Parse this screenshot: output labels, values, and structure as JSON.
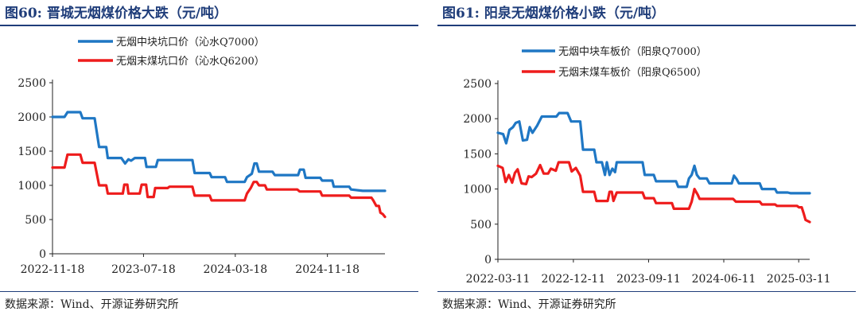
{
  "panels": [
    {
      "figure_title": "图60:  晋城无烟煤价格大跌（元/吨）",
      "source": "数据来源：Wind、开源证券研究所"
    },
    {
      "figure_title": "图61:  阳泉无烟煤价格小跌（元/吨）",
      "source": "数据来源：Wind、开源证券研究所"
    }
  ],
  "colors": {
    "blue": "#1f77c4",
    "red": "#ee1c1c",
    "title": "#1f3d7a"
  },
  "chart_data": [
    {
      "type": "line",
      "title": "",
      "xlabel": "",
      "ylabel": "",
      "ylim": [
        0,
        2500
      ],
      "yticks": [
        0,
        500,
        1000,
        1500,
        2000,
        2500
      ],
      "x_tick_labels": [
        "2022-11-18",
        "2023-07-18",
        "2024-03-18",
        "2024-11-18"
      ],
      "x_tick_dates": [
        "2022-11-18",
        "2023-07-18",
        "2024-03-18",
        "2024-11-18"
      ],
      "x_range": [
        "2022-11-18",
        "2025-04-20"
      ],
      "legend_position": "top-left",
      "grid": false,
      "series": [
        {
          "name": "无烟中块坑口价（沁水Q7000）",
          "color": "#1f77c4",
          "points": [
            [
              "2022-11-18",
              2000
            ],
            [
              "2022-12-20",
              2000
            ],
            [
              "2022-12-28",
              2070
            ],
            [
              "2023-01-31",
              2070
            ],
            [
              "2023-02-06",
              1980
            ],
            [
              "2023-03-10",
              1980
            ],
            [
              "2023-03-22",
              1560
            ],
            [
              "2023-04-10",
              1560
            ],
            [
              "2023-04-14",
              1400
            ],
            [
              "2023-05-20",
              1400
            ],
            [
              "2023-05-30",
              1320
            ],
            [
              "2023-06-08",
              1380
            ],
            [
              "2023-06-15",
              1360
            ],
            [
              "2023-06-25",
              1400
            ],
            [
              "2023-07-22",
              1400
            ],
            [
              "2023-07-26",
              1270
            ],
            [
              "2023-08-20",
              1270
            ],
            [
              "2023-08-25",
              1370
            ],
            [
              "2023-11-25",
              1370
            ],
            [
              "2023-12-01",
              1180
            ],
            [
              "2024-01-10",
              1180
            ],
            [
              "2024-01-15",
              1120
            ],
            [
              "2024-02-20",
              1120
            ],
            [
              "2024-02-25",
              1050
            ],
            [
              "2024-04-12",
              1050
            ],
            [
              "2024-04-18",
              1120
            ],
            [
              "2024-05-01",
              1170
            ],
            [
              "2024-05-08",
              1320
            ],
            [
              "2024-05-14",
              1320
            ],
            [
              "2024-05-20",
              1200
            ],
            [
              "2024-06-25",
              1200
            ],
            [
              "2024-07-01",
              1150
            ],
            [
              "2024-09-01",
              1150
            ],
            [
              "2024-09-06",
              1230
            ],
            [
              "2024-09-16",
              1230
            ],
            [
              "2024-09-21",
              1110
            ],
            [
              "2024-10-30",
              1110
            ],
            [
              "2024-11-04",
              1070
            ],
            [
              "2024-12-01",
              1070
            ],
            [
              "2024-12-05",
              980
            ],
            [
              "2025-01-15",
              980
            ],
            [
              "2025-01-20",
              940
            ],
            [
              "2025-02-20",
              920
            ],
            [
              "2025-04-20",
              920
            ]
          ]
        },
        {
          "name": "无烟末煤坑口价（沁水Q6200）",
          "color": "#ee1c1c",
          "points": [
            [
              "2022-11-18",
              1260
            ],
            [
              "2022-12-20",
              1260
            ],
            [
              "2022-12-28",
              1450
            ],
            [
              "2023-01-31",
              1450
            ],
            [
              "2023-02-06",
              1330
            ],
            [
              "2023-03-10",
              1330
            ],
            [
              "2023-03-22",
              1000
            ],
            [
              "2023-04-10",
              1000
            ],
            [
              "2023-04-14",
              880
            ],
            [
              "2023-05-24",
              880
            ],
            [
              "2023-05-28",
              1010
            ],
            [
              "2023-06-05",
              1010
            ],
            [
              "2023-06-08",
              880
            ],
            [
              "2023-07-08",
              880
            ],
            [
              "2023-07-13",
              1010
            ],
            [
              "2023-07-25",
              1010
            ],
            [
              "2023-07-29",
              830
            ],
            [
              "2023-08-14",
              830
            ],
            [
              "2023-08-18",
              960
            ],
            [
              "2023-09-20",
              960
            ],
            [
              "2023-09-25",
              980
            ],
            [
              "2023-11-25",
              980
            ],
            [
              "2023-12-01",
              850
            ],
            [
              "2024-01-10",
              850
            ],
            [
              "2024-01-15",
              780
            ],
            [
              "2024-04-12",
              780
            ],
            [
              "2024-04-18",
              880
            ],
            [
              "2024-04-28",
              960
            ],
            [
              "2024-05-06",
              1050
            ],
            [
              "2024-05-14",
              1050
            ],
            [
              "2024-05-20",
              1000
            ],
            [
              "2024-06-05",
              1000
            ],
            [
              "2024-06-10",
              940
            ],
            [
              "2024-08-30",
              940
            ],
            [
              "2024-09-05",
              910
            ],
            [
              "2024-10-30",
              910
            ],
            [
              "2024-11-04",
              850
            ],
            [
              "2025-01-15",
              850
            ],
            [
              "2025-01-20",
              820
            ],
            [
              "2025-03-15",
              820
            ],
            [
              "2025-03-20",
              780
            ],
            [
              "2025-03-28",
              700
            ],
            [
              "2025-04-04",
              700
            ],
            [
              "2025-04-08",
              600
            ],
            [
              "2025-04-14",
              580
            ],
            [
              "2025-04-20",
              540
            ]
          ]
        }
      ]
    },
    {
      "type": "line",
      "title": "",
      "xlabel": "",
      "ylabel": "",
      "ylim": [
        0,
        2500
      ],
      "yticks": [
        0,
        500,
        1000,
        1500,
        2000,
        2500
      ],
      "x_tick_labels": [
        "2022-03-11",
        "2022-12-11",
        "2023-09-11",
        "2024-06-11",
        "2025-03-11"
      ],
      "x_tick_dates": [
        "2022-03-11",
        "2022-12-11",
        "2023-09-11",
        "2024-06-11",
        "2025-03-11"
      ],
      "x_range": [
        "2022-03-11",
        "2025-04-20"
      ],
      "legend_position": "top-left",
      "grid": false,
      "series": [
        {
          "name": "无烟中块车板价（阳泉Q7000）",
          "color": "#1f77c4",
          "points": [
            [
              "2022-03-11",
              1800
            ],
            [
              "2022-03-30",
              1780
            ],
            [
              "2022-04-10",
              1650
            ],
            [
              "2022-04-22",
              1840
            ],
            [
              "2022-05-05",
              1880
            ],
            [
              "2022-05-15",
              1940
            ],
            [
              "2022-05-28",
              1960
            ],
            [
              "2022-06-10",
              1690
            ],
            [
              "2022-06-25",
              1700
            ],
            [
              "2022-07-05",
              1880
            ],
            [
              "2022-07-15",
              1800
            ],
            [
              "2022-08-01",
              1900
            ],
            [
              "2022-08-18",
              2030
            ],
            [
              "2022-10-10",
              2030
            ],
            [
              "2022-10-20",
              2080
            ],
            [
              "2022-11-20",
              2080
            ],
            [
              "2022-12-03",
              1960
            ],
            [
              "2023-01-05",
              1960
            ],
            [
              "2023-01-15",
              1560
            ],
            [
              "2023-02-25",
              1560
            ],
            [
              "2023-03-05",
              1380
            ],
            [
              "2023-03-25",
              1380
            ],
            [
              "2023-04-05",
              1200
            ],
            [
              "2023-04-12",
              1380
            ],
            [
              "2023-04-22",
              1200
            ],
            [
              "2023-05-02",
              1290
            ],
            [
              "2023-05-12",
              1240
            ],
            [
              "2023-05-18",
              1380
            ],
            [
              "2023-08-20",
              1380
            ],
            [
              "2023-08-28",
              1200
            ],
            [
              "2023-09-30",
              1200
            ],
            [
              "2023-10-08",
              1110
            ],
            [
              "2023-12-20",
              1110
            ],
            [
              "2023-12-28",
              1030
            ],
            [
              "2024-01-28",
              1030
            ],
            [
              "2024-02-05",
              1150
            ],
            [
              "2024-02-15",
              1200
            ],
            [
              "2024-02-25",
              1330
            ],
            [
              "2024-03-05",
              1200
            ],
            [
              "2024-03-15",
              1150
            ],
            [
              "2024-04-10",
              1150
            ],
            [
              "2024-04-20",
              1080
            ],
            [
              "2024-07-10",
              1080
            ],
            [
              "2024-07-18",
              1190
            ],
            [
              "2024-07-28",
              1140
            ],
            [
              "2024-08-05",
              1080
            ],
            [
              "2024-10-20",
              1080
            ],
            [
              "2024-10-28",
              1000
            ],
            [
              "2024-12-15",
              1000
            ],
            [
              "2024-12-22",
              950
            ],
            [
              "2025-01-30",
              950
            ],
            [
              "2025-02-10",
              940
            ],
            [
              "2025-04-20",
              940
            ]
          ]
        },
        {
          "name": "无烟末煤车板价（阳泉Q6500）",
          "color": "#ee1c1c",
          "points": [
            [
              "2022-03-11",
              1330
            ],
            [
              "2022-03-28",
              1300
            ],
            [
              "2022-04-08",
              1100
            ],
            [
              "2022-04-20",
              1200
            ],
            [
              "2022-05-02",
              1090
            ],
            [
              "2022-05-12",
              1230
            ],
            [
              "2022-05-22",
              1280
            ],
            [
              "2022-06-05",
              1080
            ],
            [
              "2022-06-22",
              1070
            ],
            [
              "2022-07-01",
              1180
            ],
            [
              "2022-07-12",
              1170
            ],
            [
              "2022-07-28",
              1220
            ],
            [
              "2022-08-12",
              1340
            ],
            [
              "2022-08-25",
              1220
            ],
            [
              "2022-09-10",
              1220
            ],
            [
              "2022-09-20",
              1290
            ],
            [
              "2022-10-08",
              1260
            ],
            [
              "2022-10-18",
              1380
            ],
            [
              "2022-11-25",
              1380
            ],
            [
              "2022-12-05",
              1250
            ],
            [
              "2022-12-20",
              1300
            ],
            [
              "2023-01-05",
              1190
            ],
            [
              "2023-01-15",
              960
            ],
            [
              "2023-02-25",
              960
            ],
            [
              "2023-03-05",
              830
            ],
            [
              "2023-04-15",
              830
            ],
            [
              "2023-04-22",
              960
            ],
            [
              "2023-04-30",
              960
            ],
            [
              "2023-05-06",
              830
            ],
            [
              "2023-05-18",
              950
            ],
            [
              "2023-08-20",
              950
            ],
            [
              "2023-08-28",
              870
            ],
            [
              "2023-09-30",
              870
            ],
            [
              "2023-10-08",
              800
            ],
            [
              "2023-12-05",
              800
            ],
            [
              "2023-12-12",
              720
            ],
            [
              "2024-02-05",
              720
            ],
            [
              "2024-02-15",
              820
            ],
            [
              "2024-02-25",
              1000
            ],
            [
              "2024-03-08",
              920
            ],
            [
              "2024-03-15",
              860
            ],
            [
              "2024-07-15",
              860
            ],
            [
              "2024-07-25",
              820
            ],
            [
              "2024-10-20",
              820
            ],
            [
              "2024-10-28",
              780
            ],
            [
              "2024-12-15",
              780
            ],
            [
              "2024-12-22",
              760
            ],
            [
              "2025-03-05",
              760
            ],
            [
              "2025-03-12",
              740
            ],
            [
              "2025-03-22",
              740
            ],
            [
              "2025-03-30",
              640
            ],
            [
              "2025-04-05",
              560
            ],
            [
              "2025-04-20",
              530
            ]
          ]
        }
      ]
    }
  ]
}
